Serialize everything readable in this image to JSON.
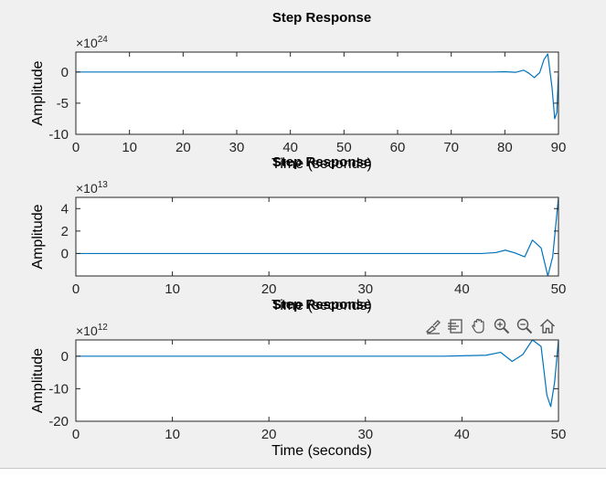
{
  "figure": {
    "background": "#f0f0f0",
    "toolbar": [
      {
        "name": "brush-icon"
      },
      {
        "name": "data-tips-icon"
      },
      {
        "name": "pan-icon"
      },
      {
        "name": "zoom-in-icon"
      },
      {
        "name": "zoom-out-icon"
      },
      {
        "name": "home-icon"
      }
    ]
  },
  "chart_data": [
    {
      "type": "line",
      "title": "Step Response",
      "xlabel": "Time (seconds)",
      "ylabel": "Amplitude",
      "exponent_base": "×10",
      "exponent_power": "24",
      "xlim": [
        0,
        90
      ],
      "ylim": [
        -10,
        3.2
      ],
      "xticks": [
        0,
        10,
        20,
        30,
        40,
        50,
        60,
        70,
        80,
        90
      ],
      "yticks": [
        {
          "value": 0,
          "label": "0"
        },
        {
          "value": -5,
          "label": "-5"
        },
        {
          "value": -10,
          "label": "-10"
        }
      ],
      "line_color": "#0072bd",
      "grid": false,
      "series": [
        {
          "x": [
            0,
            70,
            78,
            80,
            82,
            83.5,
            84.5,
            85.5,
            86.5,
            87.3,
            88,
            88.8,
            89.3,
            89.7,
            90
          ],
          "y": [
            0,
            0,
            0,
            0.05,
            -0.05,
            0.3,
            -0.2,
            -0.9,
            -0.1,
            2.0,
            2.9,
            -2.5,
            -7.5,
            -6.5,
            0
          ]
        }
      ]
    },
    {
      "type": "line",
      "title": "Step Response",
      "xlabel": "Time (seconds)",
      "ylabel": "Amplitude",
      "exponent_base": "×10",
      "exponent_power": "13",
      "xlim": [
        0,
        50
      ],
      "ylim": [
        -2,
        5
      ],
      "xticks": [
        0,
        10,
        20,
        30,
        40,
        50
      ],
      "yticks": [
        {
          "value": 0,
          "label": "0"
        },
        {
          "value": 2,
          "label": "2"
        },
        {
          "value": 4,
          "label": "4"
        }
      ],
      "line_color": "#0072bd",
      "grid": false,
      "series": [
        {
          "x": [
            0,
            38,
            42,
            43.5,
            44.5,
            45.5,
            46.5,
            47.3,
            48.2,
            48.9,
            49.4,
            50
          ],
          "y": [
            0,
            0,
            0,
            0.08,
            0.3,
            0.05,
            -0.3,
            1.2,
            0.5,
            -2.0,
            -0.3,
            5.0
          ]
        }
      ]
    },
    {
      "type": "line",
      "title": "Step Response",
      "xlabel": "Time (seconds)",
      "ylabel": "Amplitude",
      "exponent_base": "×10",
      "exponent_power": "12",
      "xlim": [
        0,
        50
      ],
      "ylim": [
        -20,
        5
      ],
      "xticks": [
        0,
        10,
        20,
        30,
        40,
        50
      ],
      "yticks": [
        {
          "value": 0,
          "label": "0"
        },
        {
          "value": -10,
          "label": "-10"
        },
        {
          "value": -20,
          "label": "-20"
        }
      ],
      "line_color": "#0072bd",
      "grid": false,
      "series": [
        {
          "x": [
            0,
            38,
            41,
            42.5,
            44,
            45.2,
            46.3,
            47.3,
            48.2,
            48.8,
            49.2,
            49.6,
            50
          ],
          "y": [
            0,
            0,
            0.2,
            0.3,
            1.2,
            -1.6,
            0.5,
            5.0,
            3.0,
            -12.0,
            -15.5,
            -8.0,
            5.0
          ]
        }
      ]
    }
  ]
}
